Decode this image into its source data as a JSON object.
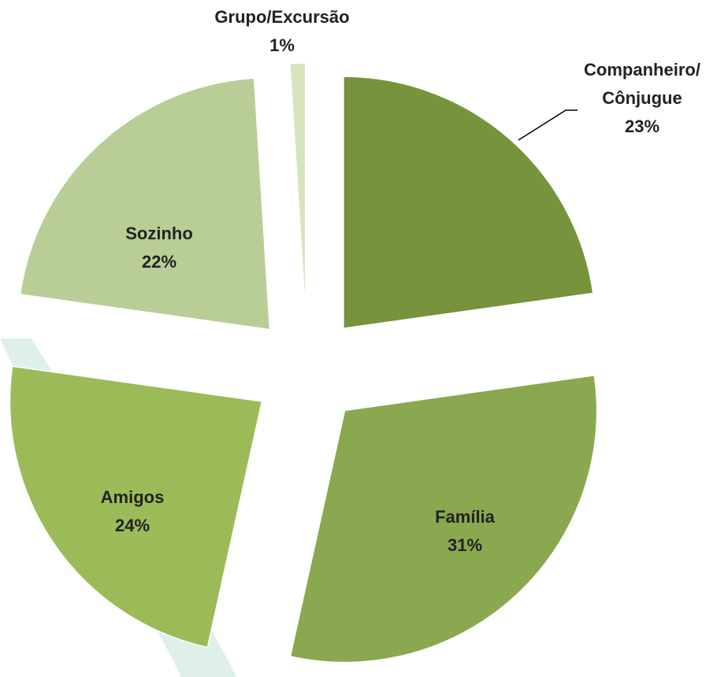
{
  "chart_data": {
    "type": "pie",
    "categories": [
      "Companheiro/\nCônjugue",
      "Família",
      "Amigos",
      "Sozinho",
      "Grupo/Excursão"
    ],
    "values": [
      23,
      31,
      24,
      22,
      1
    ],
    "value_labels": [
      "23%",
      "31%",
      "24%",
      "22%",
      "1%"
    ],
    "colors": [
      "#77933c",
      "#8aa84f",
      "#9bbb59",
      "#b9cd96",
      "#d7e4bd"
    ]
  }
}
